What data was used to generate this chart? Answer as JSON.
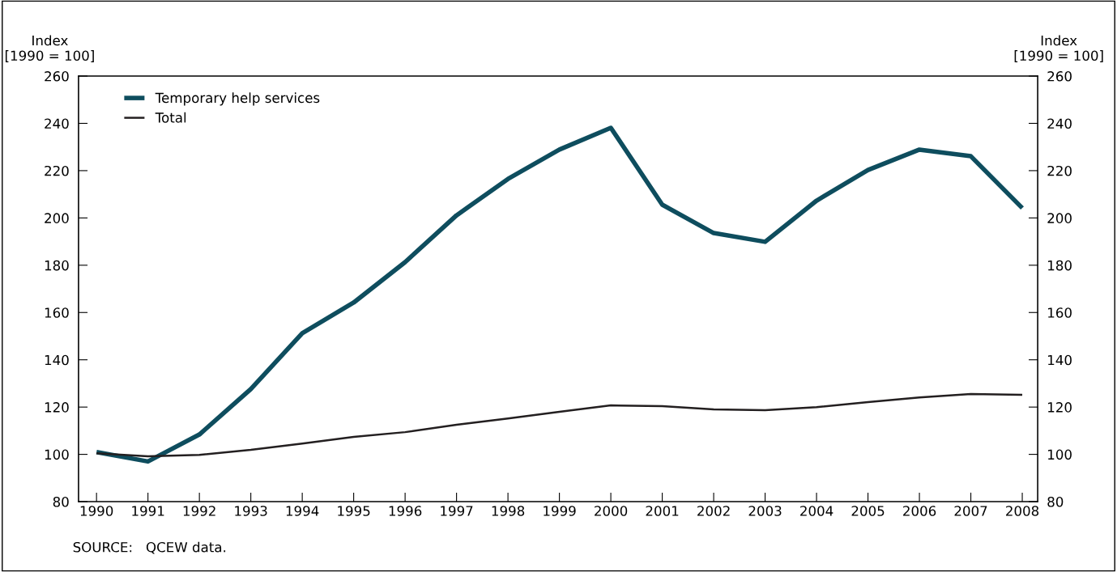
{
  "chart_data": {
    "type": "line",
    "ylabel": "Index\n[1990 = 100]",
    "y2label": "Index\n[1990 = 100]",
    "x": [
      1990,
      1991,
      1992,
      1993,
      1994,
      1995,
      1996,
      1997,
      1998,
      1999,
      2000,
      2001,
      2002,
      2003,
      2004,
      2005,
      2006,
      2007,
      2008
    ],
    "series": [
      {
        "name": "Temporary help services",
        "color": "#0e4d5e",
        "values": [
          101,
          97,
          108.4,
          127.6,
          151.2,
          164.2,
          181.3,
          201.1,
          216.5,
          228.9,
          238.1,
          205.6,
          193.6,
          189.9,
          207.3,
          220.3,
          228.9,
          226.1,
          204.2
        ]
      },
      {
        "name": "Total",
        "color": "#231f20",
        "values": [
          100.5,
          99.2,
          99.8,
          101.9,
          104.6,
          107.4,
          109.4,
          112.5,
          115.2,
          118,
          120.7,
          120.4,
          119,
          118.7,
          120,
          122.1,
          124.1,
          125.5,
          125.2
        ]
      }
    ],
    "xlim": [
      1989.65,
      2008.3
    ],
    "xticks": [
      1990,
      1991,
      1992,
      1993,
      1994,
      1995,
      1996,
      1997,
      1998,
      1999,
      2000,
      2001,
      2002,
      2003,
      2004,
      2005,
      2006,
      2007,
      2008
    ],
    "ylim": [
      80,
      260
    ],
    "yticks": [
      80,
      100,
      120,
      140,
      160,
      180,
      200,
      220,
      240,
      260
    ],
    "y2lim": [
      80,
      260
    ],
    "y2ticks": [
      80,
      100,
      120,
      140,
      160,
      180,
      200,
      220,
      240,
      260
    ],
    "legend": "top left",
    "grid": false,
    "marker": "none",
    "line_style": "solid",
    "annotations": [
      "SOURCE:   QCEW data."
    ]
  }
}
